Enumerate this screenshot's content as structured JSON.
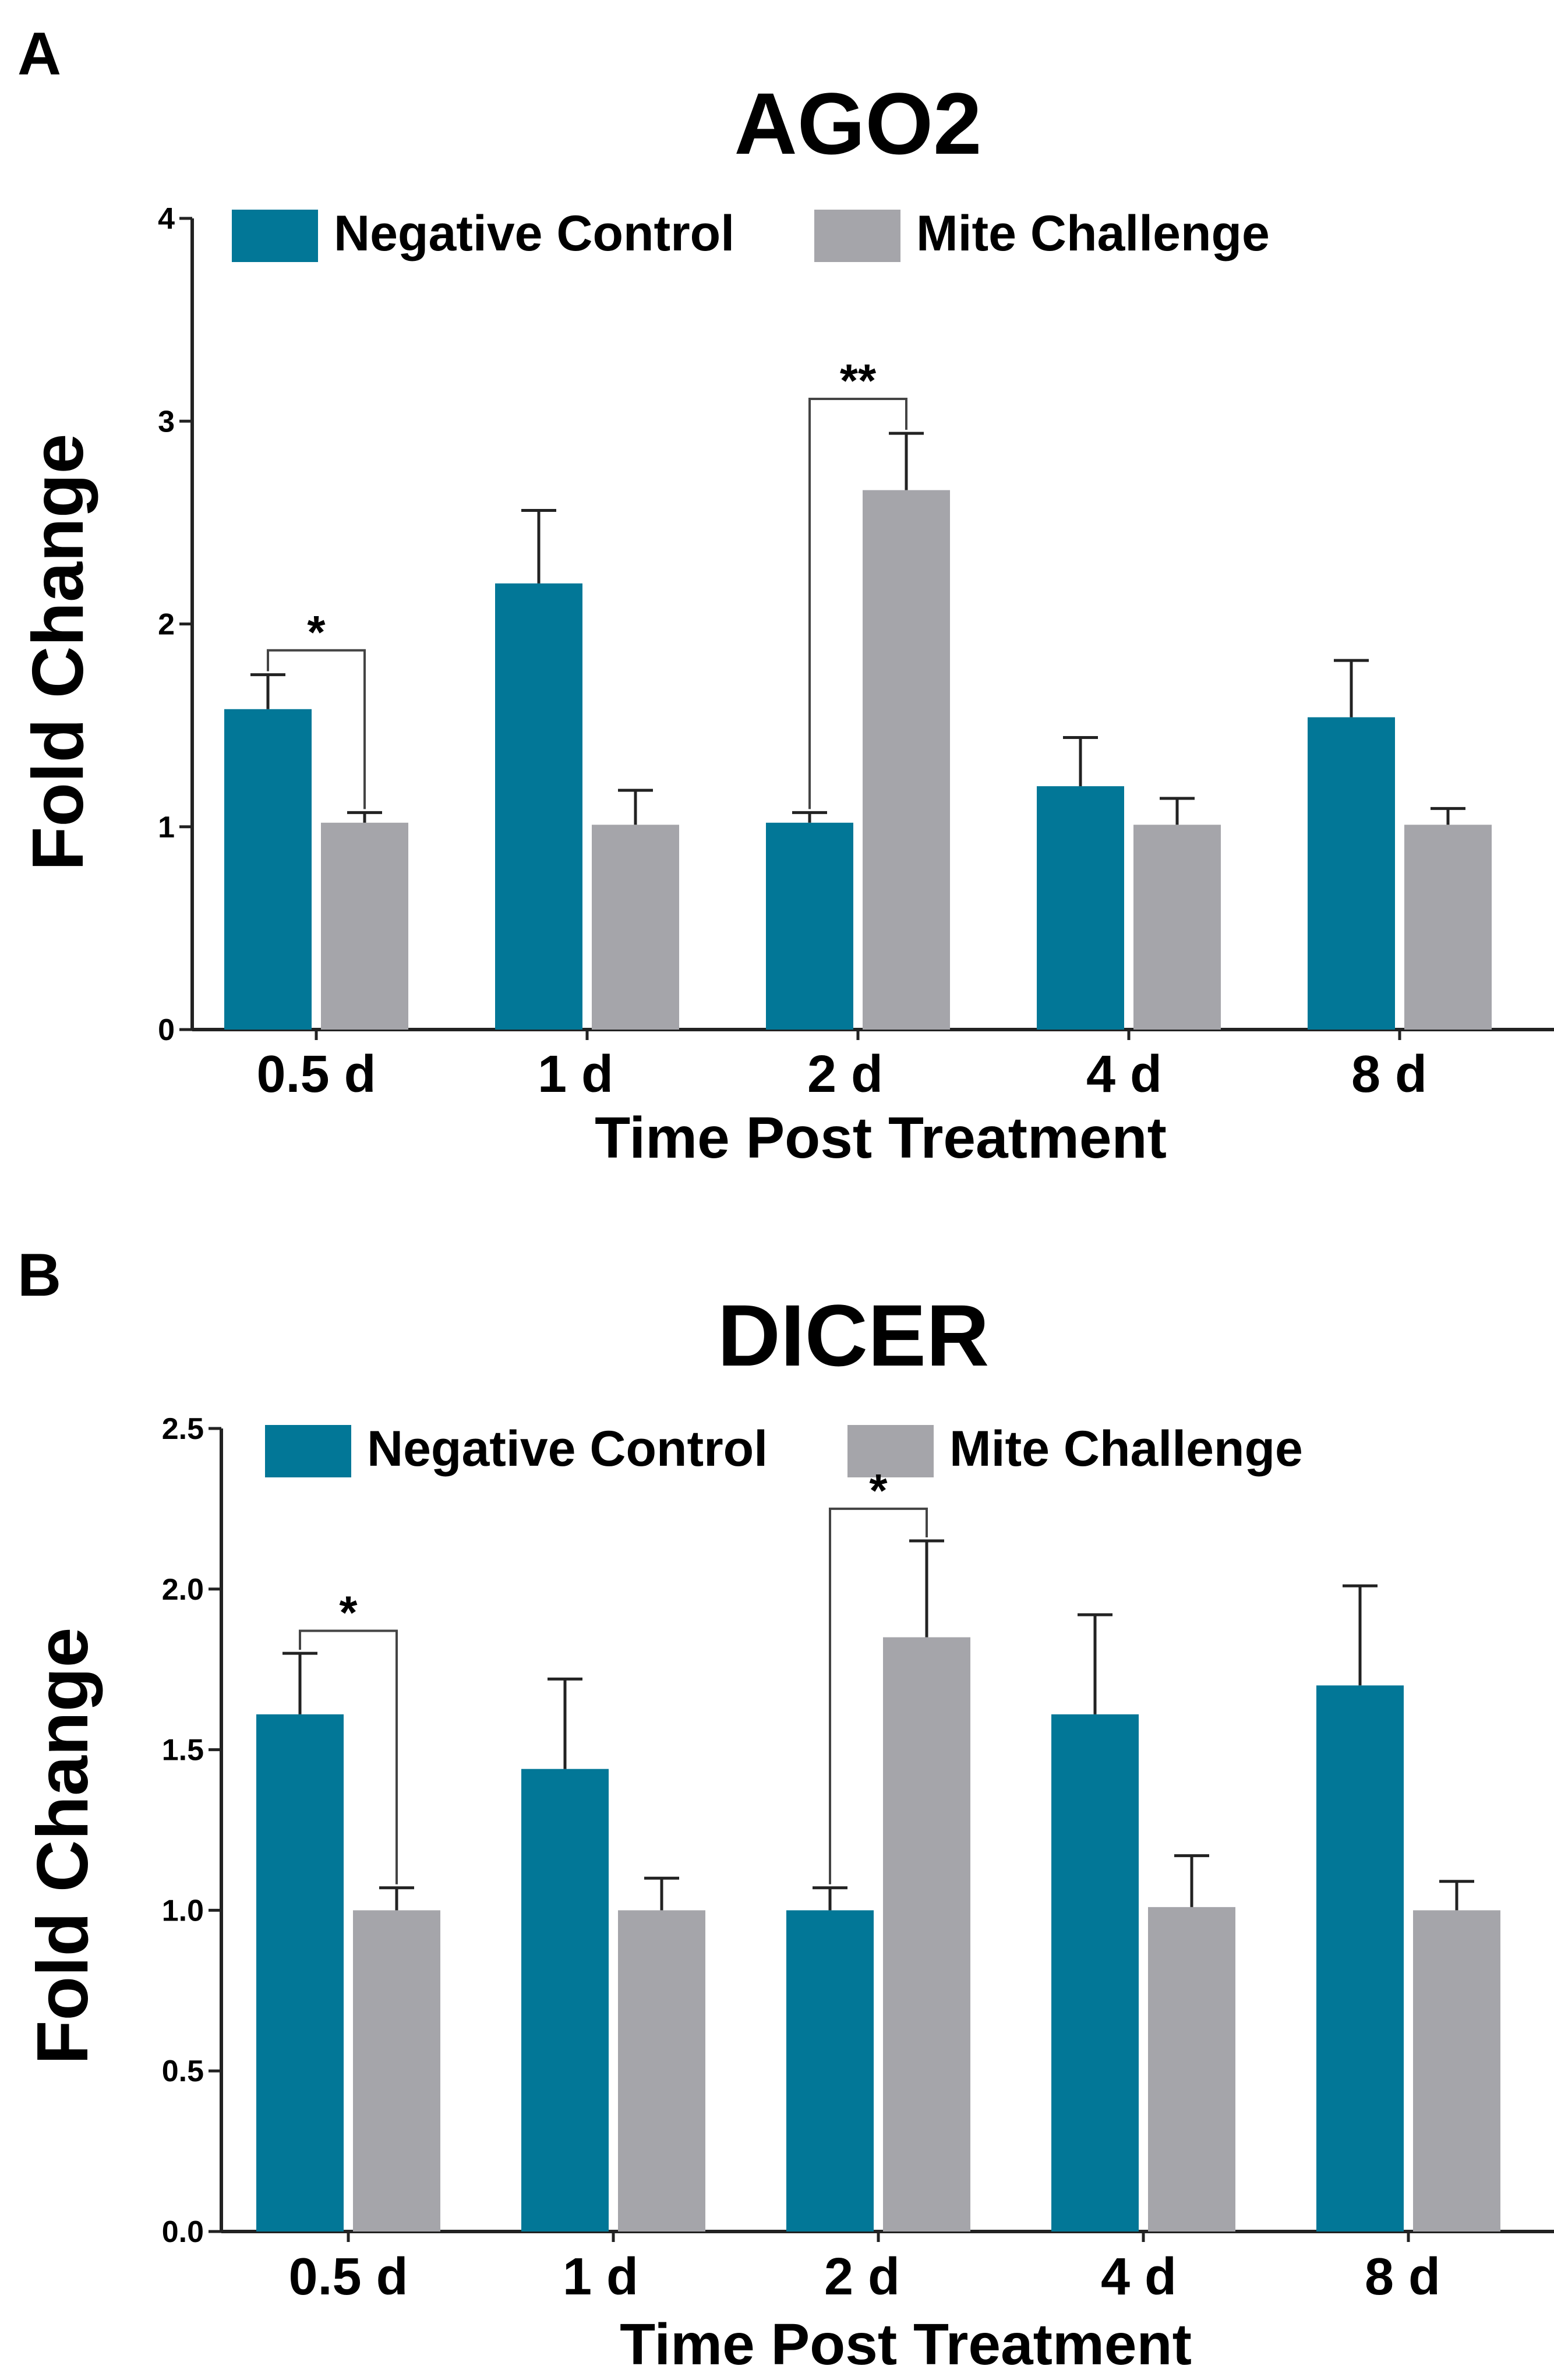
{
  "colors": {
    "negative_control": "#027797",
    "mite_challenge": "#A5A5AA",
    "axis": "#222222",
    "text": "#000000"
  },
  "chart_data": [
    {
      "panel_label": "A",
      "type": "bar",
      "title": "AGO2",
      "xlabel": "Time Post Treatment",
      "ylabel": "Fold Change",
      "categories": [
        "0.5 d",
        "1 d",
        "2 d",
        "4 d",
        "8 d"
      ],
      "ylim": [
        0,
        4
      ],
      "yticks": [
        "0",
        "1",
        "2",
        "3",
        "4"
      ],
      "legend_position": "top",
      "series": [
        {
          "name": "Negative Control",
          "values": [
            1.58,
            2.2,
            1.02,
            1.2,
            1.54
          ],
          "errors": [
            0.17,
            0.36,
            0.05,
            0.24,
            0.28
          ]
        },
        {
          "name": "Mite Challenge",
          "values": [
            1.02,
            1.01,
            2.66,
            1.01,
            1.01
          ],
          "errors": [
            0.05,
            0.17,
            0.28,
            0.13,
            0.08
          ]
        }
      ],
      "significance": [
        {
          "category": 0,
          "label": "*",
          "bracket_y": 1.87
        },
        {
          "category": 2,
          "label": "**",
          "bracket_y": 3.11
        }
      ]
    },
    {
      "panel_label": "B",
      "type": "bar",
      "title": "DICER",
      "xlabel": "Time Post Treatment",
      "ylabel": "Fold Change",
      "categories": [
        "0.5 d",
        "1 d",
        "2 d",
        "4 d",
        "8 d"
      ],
      "ylim": [
        0,
        2.5
      ],
      "yticks": [
        "0.0",
        "0.5",
        "1.0",
        "1.5",
        "2.0",
        "2.5"
      ],
      "legend_position": "top",
      "series": [
        {
          "name": "Negative Control",
          "values": [
            1.61,
            1.44,
            1.0,
            1.61,
            1.7
          ],
          "errors": [
            0.19,
            0.28,
            0.07,
            0.31,
            0.31
          ]
        },
        {
          "name": "Mite Challenge",
          "values": [
            1.0,
            1.0,
            1.85,
            1.01,
            1.0
          ],
          "errors": [
            0.07,
            0.1,
            0.3,
            0.16,
            0.09
          ]
        }
      ],
      "significance": [
        {
          "category": 0,
          "label": "*",
          "bracket_y": 1.87
        },
        {
          "category": 2,
          "label": "*",
          "bracket_y": 2.25
        }
      ]
    }
  ]
}
